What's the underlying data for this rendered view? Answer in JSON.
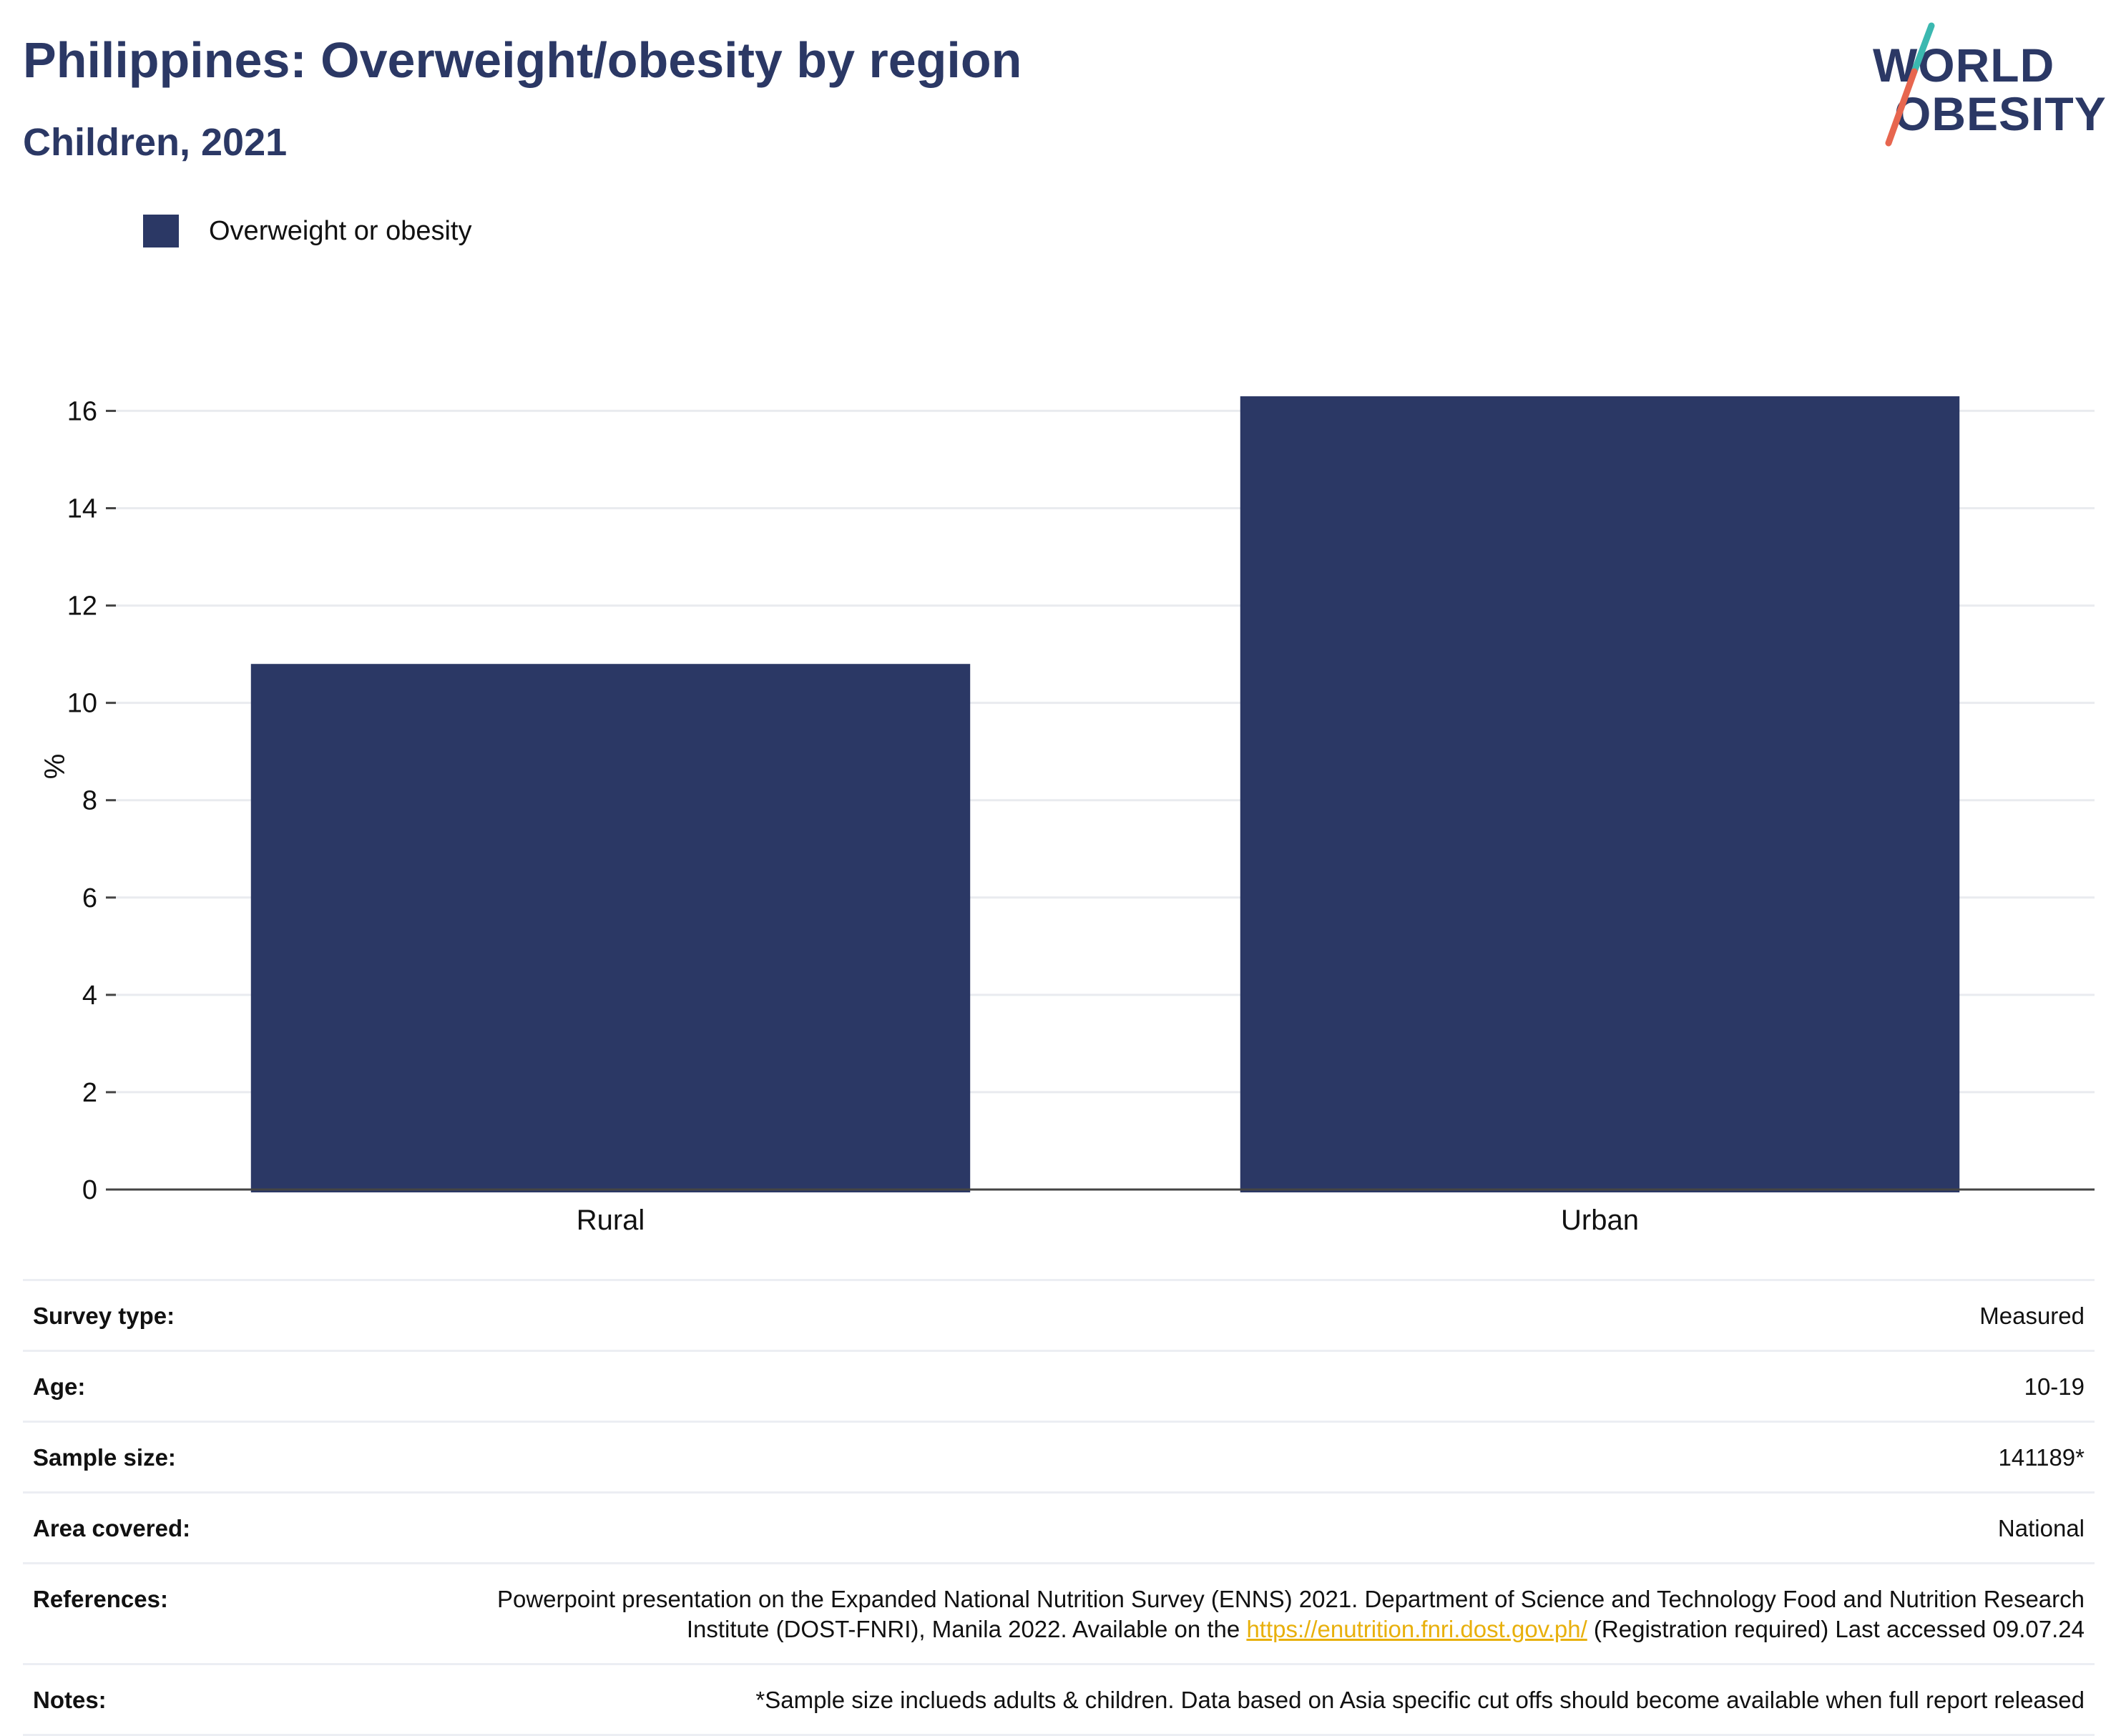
{
  "header": {
    "title": "Philippines: Overweight/obesity by region",
    "subtitle": "Children, 2021"
  },
  "logo": {
    "line1": "WORLD",
    "line2": "OBESITY",
    "colors": {
      "text": "#2b3865",
      "slash_top": "#3bb8b0",
      "slash_bottom": "#e7664f"
    }
  },
  "legend": {
    "label": "Overweight or obesity",
    "color": "#2b3865"
  },
  "chart_data": {
    "type": "bar",
    "categories": [
      "Rural",
      "Urban"
    ],
    "series": [
      {
        "name": "Overweight or obesity",
        "values": [
          10.8,
          16.3
        ],
        "color": "#2b3865"
      }
    ],
    "ylabel": "%",
    "xlabel": "",
    "ylim": [
      0,
      16.8
    ],
    "yticks": [
      0,
      2,
      4,
      6,
      8,
      10,
      12,
      14,
      16
    ],
    "grid": true,
    "legend_position": "top-left"
  },
  "info": {
    "survey_type": {
      "label": "Survey type:",
      "value": "Measured"
    },
    "age": {
      "label": "Age:",
      "value": "10-19"
    },
    "sample_size": {
      "label": "Sample size:",
      "value": "141189*"
    },
    "area_covered": {
      "label": "Area covered:",
      "value": "National"
    },
    "references": {
      "label": "References:",
      "text_before": "Powerpoint presentation on the Expanded National Nutrition Survey (ENNS) 2021. Department of Science and Technology Food and Nutrition Research Institute (DOST-FNRI), Manila 2022. Available on the ",
      "link": "https://enutrition.fnri.dost.gov.ph/",
      "text_after": " (Registration required) Last accessed 09.07.24"
    },
    "notes": {
      "label": "Notes:",
      "value": "*Sample size inclueds adults & children. Data based on Asia specific cut offs should become available when full report released"
    }
  }
}
